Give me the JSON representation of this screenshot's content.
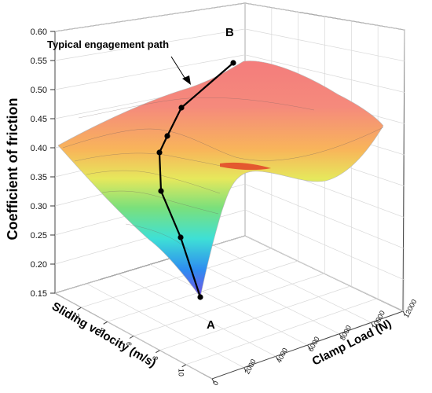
{
  "chart_data": {
    "type": "surface3d",
    "zlabel": "Coefficient of friction",
    "xlabel": "Sliding velocity (m/s)",
    "ylabel": "Clamp Load (N)",
    "z_ticks": [
      "0.15",
      "0.20",
      "0.25",
      "0.30",
      "0.35",
      "0.40",
      "0.45",
      "0.50",
      "0.55",
      "0.60"
    ],
    "z_range": [
      0.15,
      0.6
    ],
    "x_ticks": [
      "2",
      "4",
      "6",
      "8",
      "10"
    ],
    "y_ticks": [
      "0",
      "2000",
      "4000",
      "6000",
      "8000",
      "10000",
      "12000"
    ],
    "annotation": "Typical engagement path",
    "point_labels": {
      "start": "A",
      "end": "B"
    },
    "path_cof": [
      0.15,
      0.245,
      0.32,
      0.385,
      0.415,
      0.465,
      0.545
    ],
    "colorscale": [
      "#7b4fe6",
      "#2e8cf0",
      "#3ee0d6",
      "#7be07b",
      "#e6e85c",
      "#f8b55a",
      "#f58a7c"
    ]
  }
}
